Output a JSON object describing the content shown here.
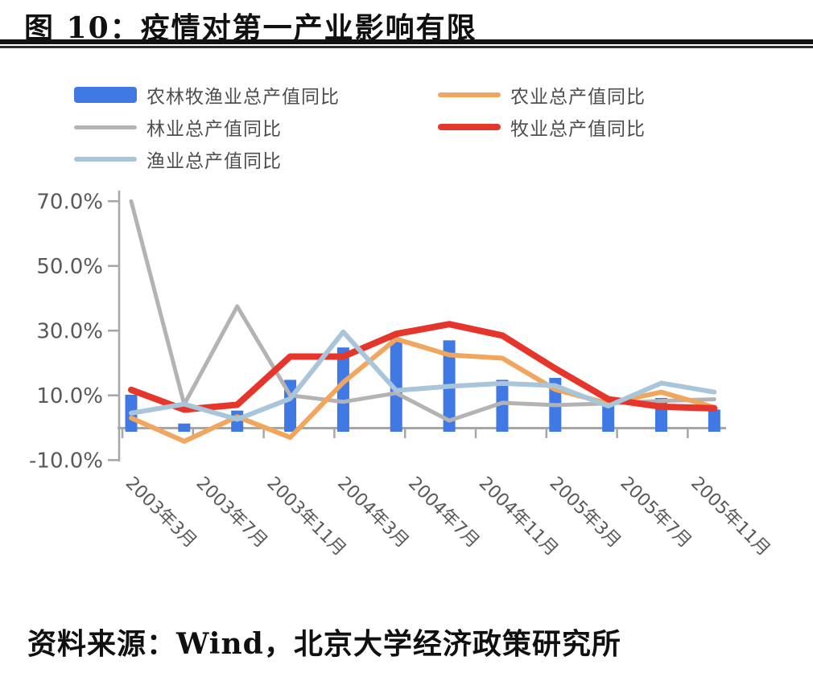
{
  "title": "图 10：疫情对第一产业影响有限",
  "source": "资料来源：Wind，北京大学经济政策研究所",
  "colors": {
    "bar_blue": "#4079e4",
    "line_orange": "#f2a55d",
    "line_gray": "#b3b3b3",
    "line_red": "#e6352b",
    "line_lightblue": "#a8c5da",
    "axis": "#a6a6a6",
    "tick_text": "#595959",
    "legend_text": "#4d4d4d",
    "title_text": "#101010"
  },
  "legend": {
    "items": [
      {
        "label": "农林牧渔业总产值同比",
        "color": "#4079e4",
        "swatch": "bar",
        "thickness": 20
      },
      {
        "label": "农业总产值同比",
        "color": "#f2a55d",
        "swatch": "line",
        "thickness": 6
      },
      {
        "label": "林业总产值同比",
        "color": "#b3b3b3",
        "swatch": "line",
        "thickness": 5
      },
      {
        "label": "牧业总产值同比",
        "color": "#e6352b",
        "swatch": "line",
        "thickness": 8
      },
      {
        "label": "渔业总产值同比",
        "color": "#a8c5da",
        "swatch": "line",
        "thickness": 6
      }
    ]
  },
  "chart_data": {
    "type": "bar",
    "subtype": "bar-line-combo",
    "grid": false,
    "legend_position": "top-left, two columns",
    "x_axis_kind": "date, months since 2003-03, quarterly data points",
    "points": [
      "2003-03",
      "2003-06",
      "2003-09",
      "2003-12",
      "2004-03",
      "2004-06",
      "2004-09",
      "2004-12",
      "2005-03",
      "2005-06",
      "2005-09",
      "2005-12"
    ],
    "month_index": [
      0,
      3,
      6,
      9,
      12,
      15,
      18,
      21,
      24,
      27,
      30,
      33
    ],
    "x_tick_months": [
      0,
      4,
      8,
      12,
      16,
      20,
      24,
      28,
      32
    ],
    "x_tick_labels": [
      "2003年3月",
      "2003年7月",
      "2003年11月",
      "2004年3月",
      "2004年7月",
      "2004年11月",
      "2005年3月",
      "2005年7月",
      "2005年11月"
    ],
    "y_ticks": [
      {
        "v": 70,
        "label": "70.0%"
      },
      {
        "v": 50,
        "label": "50.0%"
      },
      {
        "v": 30,
        "label": "30.0%"
      },
      {
        "v": 10,
        "label": "10.0%"
      },
      {
        "v": -10,
        "label": "-10.0%"
      }
    ],
    "ylim": [
      -14,
      73
    ],
    "ylabel": "",
    "xlabel": "",
    "series": [
      {
        "name": "农林牧渔业总产值同比",
        "kind": "bar",
        "color": "#4079e4",
        "values": [
          10.2,
          1.3,
          5.3,
          14.8,
          24.8,
          27.4,
          27.0,
          14.8,
          15.4,
          7.0,
          9.2,
          5.6
        ]
      },
      {
        "name": "林业总产值同比",
        "kind": "line",
        "color": "#b3b3b3",
        "width": 5,
        "values": [
          70.0,
          7.2,
          37.5,
          10.0,
          8.0,
          10.7,
          2.2,
          7.7,
          7.0,
          7.5,
          8.3,
          8.8
        ]
      },
      {
        "name": "农业总产值同比",
        "kind": "line",
        "color": "#f2a55d",
        "width": 6,
        "values": [
          3.0,
          -4.2,
          3.4,
          -3.0,
          14.0,
          27.4,
          22.5,
          21.5,
          11.8,
          7.5,
          11.0,
          6.3
        ]
      },
      {
        "name": "牧业总产值同比",
        "kind": "line",
        "color": "#e6352b",
        "width": 8,
        "values": [
          11.7,
          5.6,
          7.1,
          22.0,
          22.0,
          29.0,
          32.0,
          28.5,
          18.3,
          8.8,
          6.5,
          6.0
        ]
      },
      {
        "name": "渔业总产值同比",
        "kind": "line",
        "color": "#a8c5da",
        "width": 6,
        "values": [
          4.5,
          7.3,
          2.6,
          9.0,
          29.6,
          11.5,
          12.8,
          13.7,
          13.0,
          6.7,
          13.8,
          11.0
        ]
      }
    ]
  }
}
